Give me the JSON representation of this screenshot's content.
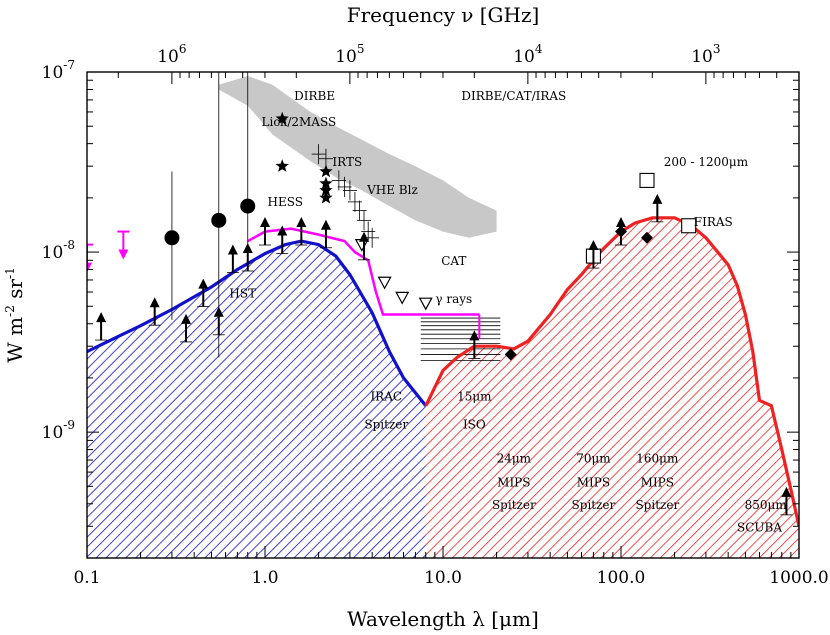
{
  "chart_data": {
    "type": "scatter",
    "xlabel": "Wavelength λ [μm]",
    "ylabel": "W m",
    "ylabel_sup1": "-2",
    "ylabel_mid": " sr",
    "ylabel_sup2": "-1",
    "top_xlabel": "Frequency ν [GHz]",
    "x_scale": "log",
    "y_scale": "log",
    "xlim": [
      0.1,
      1000.0
    ],
    "ylim": [
      2e-10,
      1e-07
    ],
    "x_tick_labels": [
      {
        "value": 0.1,
        "label": "0.1"
      },
      {
        "value": 1.0,
        "label": "1.0"
      },
      {
        "value": 10.0,
        "label": "10.0"
      },
      {
        "value": 100.0,
        "label": "100.0"
      },
      {
        "value": 1000.0,
        "label": "1000.0"
      }
    ],
    "y_tick_labels": [
      {
        "value": 1e-07,
        "base": "10",
        "exp": "-7"
      },
      {
        "value": 1e-08,
        "base": "10",
        "exp": "-8"
      },
      {
        "value": 1e-09,
        "base": "10",
        "exp": "-9"
      }
    ],
    "top_tick_labels": [
      {
        "value": 1000000,
        "base": "10",
        "exp": "6"
      },
      {
        "value": 100000,
        "base": "10",
        "exp": "5"
      },
      {
        "value": 10000,
        "base": "10",
        "exp": "4"
      },
      {
        "value": 1000,
        "base": "10",
        "exp": "3"
      }
    ],
    "colors": {
      "optical": "#1111cc",
      "infrared": "#ee2222",
      "upper_limits": "#ff00ff",
      "vhe_band": "#c8c8c8",
      "points": "#000000"
    },
    "series": [
      {
        "name": "optical",
        "x": [
          0.1,
          0.15,
          0.2,
          0.3,
          0.5,
          0.7,
          1.0,
          1.3,
          1.6,
          2.0,
          2.5,
          3.0,
          4.0,
          5.0,
          6.0,
          8.0
        ],
        "y": [
          2.8e-09,
          3.4e-09,
          3.9e-09,
          4.8e-09,
          6.4e-09,
          8e-09,
          9.8e-09,
          1.1e-08,
          1.15e-08,
          1.1e-08,
          9.5e-09,
          7.5e-09,
          4.6e-09,
          2.8e-09,
          2e-09,
          1.4e-09
        ]
      },
      {
        "name": "infrared",
        "x": [
          8.0,
          10.0,
          12.0,
          15.0,
          20.0,
          25.0,
          30.0,
          40.0,
          50.0,
          60.0,
          70.0,
          80.0,
          100.0,
          120.0,
          150.0,
          200.0,
          250.0,
          300.0,
          350.0,
          400.0,
          450.0,
          500.0,
          550.0,
          600.0,
          700.0,
          800.0,
          900.0,
          1000.0
        ],
        "y": [
          1.4e-09,
          2.2e-09,
          2.6e-09,
          3e-09,
          3e-09,
          2.9e-09,
          3.2e-09,
          4.5e-09,
          6.2e-09,
          7.5e-09,
          9e-09,
          1.05e-08,
          1.3e-08,
          1.45e-08,
          1.55e-08,
          1.55e-08,
          1.4e-08,
          1.2e-08,
          1e-08,
          8.5e-09,
          6.5e-09,
          4.5e-09,
          2.8e-09,
          1.5e-09,
          1.4e-09,
          8e-10,
          4.8e-10,
          3e-10
        ]
      },
      {
        "name": "gamma_limit",
        "x": [
          0.8,
          1.0,
          1.4,
          2.0,
          2.8,
          3.2,
          3.8,
          4.2,
          4.6,
          6.0,
          8.0,
          12.0,
          16.0
        ],
        "y": [
          1.15e-08,
          1.3e-08,
          1.35e-08,
          1.25e-08,
          1.15e-08,
          1e-08,
          9e-09,
          6e-09,
          4.5e-09,
          4.5e-09,
          4.5e-09,
          4.5e-09,
          4.5e-09
        ]
      }
    ],
    "lower_limits": [
      {
        "x": 0.12,
        "y": 4.3e-09
      },
      {
        "x": 0.24,
        "y": 5.2e-09
      },
      {
        "x": 0.36,
        "y": 4.2e-09
      },
      {
        "x": 0.45,
        "y": 6.6e-09
      },
      {
        "x": 0.55,
        "y": 4.6e-09
      },
      {
        "x": 0.66,
        "y": 1.02e-08
      },
      {
        "x": 0.8,
        "y": 1.04e-08
      },
      {
        "x": 1.0,
        "y": 1.45e-08
      },
      {
        "x": 1.25,
        "y": 1.3e-08
      },
      {
        "x": 1.6,
        "y": 1.45e-08
      },
      {
        "x": 2.2,
        "y": 1.4e-08
      },
      {
        "x": 3.6,
        "y": 1.2e-08
      },
      {
        "x": 15.0,
        "y": 3.4e-09
      },
      {
        "x": 70.0,
        "y": 1.08e-08
      },
      {
        "x": 100.0,
        "y": 1.45e-08
      },
      {
        "x": 160.0,
        "y": 1.95e-08
      },
      {
        "x": 850.0,
        "y": 4.6e-10
      }
    ],
    "upper_limits": [
      {
        "x": 0.1,
        "y": 1.1e-08
      },
      {
        "x": 0.16,
        "y": 1.3e-08
      }
    ],
    "filled_circles": [
      {
        "x": 0.3,
        "y": 1.2e-08,
        "err_lo": 4.2e-09,
        "err_hi": 2.8e-08
      },
      {
        "x": 0.55,
        "y": 1.5e-08,
        "err_lo": 2.6e-09,
        "err_hi": 1e-07
      },
      {
        "x": 0.8,
        "y": 1.8e-08,
        "err_lo": 1.1e-08,
        "err_hi": 1e-07
      }
    ],
    "stars": [
      {
        "x": 1.25,
        "y": 5.5e-08
      },
      {
        "x": 1.25,
        "y": 3e-08
      },
      {
        "x": 2.2,
        "y": 2.8e-08
      },
      {
        "x": 2.2,
        "y": 2.4e-08
      },
      {
        "x": 2.2,
        "y": 2.2e-08
      },
      {
        "x": 2.2,
        "y": 2e-08
      }
    ],
    "crosses": [
      {
        "x": 2.0,
        "y": 3.5e-08
      },
      {
        "x": 2.2,
        "y": 3.3e-08
      },
      {
        "x": 2.6,
        "y": 2.5e-08
      },
      {
        "x": 2.8,
        "y": 2.3e-08
      },
      {
        "x": 3.0,
        "y": 2.2e-08
      },
      {
        "x": 3.2,
        "y": 1.9e-08
      },
      {
        "x": 3.4,
        "y": 1.7e-08
      },
      {
        "x": 3.6,
        "y": 1.5e-08
      },
      {
        "x": 3.8,
        "y": 1.3e-08
      },
      {
        "x": 4.0,
        "y": 1.2e-08
      }
    ],
    "triangles_down": [
      {
        "x": 3.5,
        "y": 1.1e-08
      },
      {
        "x": 4.7,
        "y": 6.8e-09
      },
      {
        "x": 5.9,
        "y": 5.6e-09
      },
      {
        "x": 8.0,
        "y": 5.2e-09
      }
    ],
    "open_squares": [
      {
        "x": 70.0,
        "y": 9.5e-09
      },
      {
        "x": 140.0,
        "y": 2.5e-08
      },
      {
        "x": 240.0,
        "y": 1.4e-08
      }
    ],
    "filled_diamonds": [
      {
        "x": 24.0,
        "y": 2.7e-09
      },
      {
        "x": 140.0,
        "y": 1.2e-08
      },
      {
        "x": 100.0,
        "y": 1.3e-08
      }
    ],
    "annotations": [
      {
        "text": "DIRBE",
        "x": 1.9,
        "y": 7e-08
      },
      {
        "text": "Lick/2MASS",
        "x": 1.55,
        "y": 5e-08
      },
      {
        "text": "IRTS",
        "x": 2.9,
        "y": 3e-08
      },
      {
        "text": "VHE Blz",
        "x": 5.2,
        "y": 2.1e-08
      },
      {
        "text": "HESS",
        "x": 1.3,
        "y": 1.8e-08
      },
      {
        "text": "DIRBE/CAT/IRAS",
        "x": 25.0,
        "y": 7e-08
      },
      {
        "text": "200 - 1200μm",
        "x": 300.0,
        "y": 3e-08
      },
      {
        "text": "FIRAS",
        "x": 330.0,
        "y": 1.4e-08
      },
      {
        "text": "CAT",
        "x": 11.5,
        "y": 8.5e-09
      },
      {
        "text": "γ rays",
        "x": 11.5,
        "y": 5.2e-09
      },
      {
        "text": "HST",
        "x": 0.75,
        "y": 5.6e-09
      },
      {
        "text": "IRAC",
        "x": 4.8,
        "y": 1.5e-09
      },
      {
        "text": "Spitzer",
        "x": 4.8,
        "y": 1.05e-09
      },
      {
        "text": "15μm",
        "x": 15.0,
        "y": 1.5e-09
      },
      {
        "text": "ISO",
        "x": 15.0,
        "y": 1.05e-09
      },
      {
        "text": "24μm",
        "x": 25.0,
        "y": 6.8e-10
      },
      {
        "text": "MIPS",
        "x": 25.0,
        "y": 5e-10
      },
      {
        "text": "Spitzer",
        "x": 25.0,
        "y": 3.75e-10
      },
      {
        "text": "70μm",
        "x": 70.0,
        "y": 6.8e-10
      },
      {
        "text": "MIPS",
        "x": 70.0,
        "y": 5e-10
      },
      {
        "text": "Spitzer",
        "x": 70.0,
        "y": 3.75e-10
      },
      {
        "text": "160μm",
        "x": 160.0,
        "y": 6.8e-10
      },
      {
        "text": "MIPS",
        "x": 160.0,
        "y": 5e-10
      },
      {
        "text": "Spitzer",
        "x": 160.0,
        "y": 3.75e-10
      },
      {
        "text": "850μm",
        "x": 650.0,
        "y": 3.75e-10
      },
      {
        "text": "SCUBA",
        "x": 600.0,
        "y": 2.8e-10
      }
    ],
    "vhe_band": {
      "upper_x": [
        0.55,
        0.8,
        1.1,
        1.8,
        2.5,
        3.5,
        5.0,
        7.0,
        10.0,
        14.0,
        20.0
      ],
      "upper_y": [
        8.5e-08,
        9.5e-08,
        8.5e-08,
        6e-08,
        5e-08,
        4.2e-08,
        3.5e-08,
        3e-08,
        2.5e-08,
        2e-08,
        1.7e-08
      ],
      "lower_x": [
        20.0,
        14.0,
        10.0,
        7.0,
        5.0,
        3.5,
        2.5,
        1.8,
        1.1,
        0.8,
        0.55
      ],
      "lower_y": [
        1.3e-08,
        1.2e-08,
        1.3e-08,
        1.5e-08,
        1.8e-08,
        2.2e-08,
        2.6e-08,
        3.2e-08,
        4.5e-08,
        6.5e-08,
        8e-08
      ]
    },
    "grid": false
  }
}
